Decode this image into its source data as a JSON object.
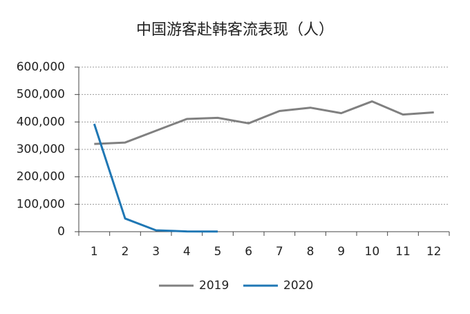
{
  "chart_data": {
    "type": "line",
    "title": "中国游客赴韩客流表现（人）",
    "categories": [
      "1",
      "2",
      "3",
      "4",
      "5",
      "6",
      "7",
      "8",
      "9",
      "10",
      "11",
      "12"
    ],
    "series": [
      {
        "name": "2019",
        "color": "#808080",
        "values": [
          320000,
          325000,
          368000,
          411000,
          415000,
          395000,
          440000,
          452000,
          432000,
          475000,
          427000,
          435000
        ]
      },
      {
        "name": "2020",
        "color": "#1f77b4",
        "values": [
          393000,
          48000,
          5000,
          1000,
          600,
          null,
          null,
          null,
          null,
          null,
          null,
          null
        ]
      }
    ],
    "ylim": [
      0,
      600000
    ],
    "yticks": [
      0,
      {
        "value": 100000,
        "label": "100,000"
      },
      {
        "value": 200000,
        "label": "200,000"
      },
      {
        "value": 300000,
        "label": "300,000"
      },
      {
        "value": 400000,
        "label": "400,000"
      },
      {
        "value": 500000,
        "label": "500,000"
      },
      {
        "value": 600000,
        "label": "600,000"
      }
    ],
    "grid": true,
    "legend": "bottom"
  }
}
